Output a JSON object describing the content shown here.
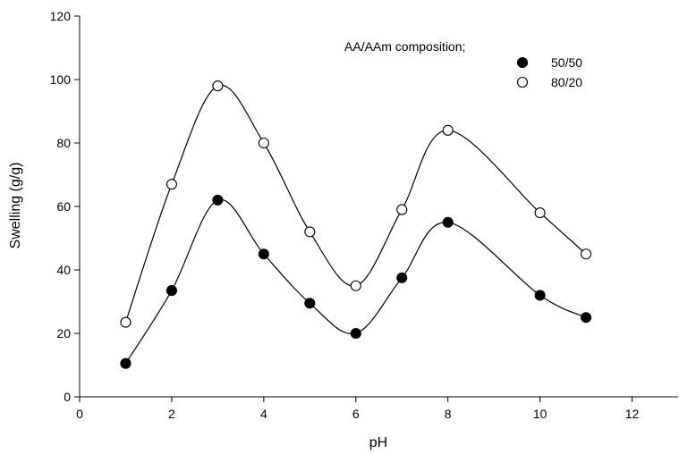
{
  "chart_data": {
    "type": "scatter",
    "title": "",
    "xlabel": "pH",
    "ylabel": "Swelling (g/g)",
    "xlim": [
      0,
      13
    ],
    "ylim": [
      0,
      120
    ],
    "xticks": [
      0,
      2,
      4,
      6,
      8,
      10,
      12
    ],
    "yticks": [
      0,
      20,
      40,
      60,
      80,
      100,
      120
    ],
    "grid": false,
    "legend": {
      "title": "AA/AAm composition;",
      "placement": "top-right"
    },
    "series": [
      {
        "name": "50/50",
        "marker": "filled-circle",
        "color": "#000000",
        "smooth_line": true,
        "x": [
          1,
          2,
          3,
          4,
          5,
          6,
          7,
          8,
          10,
          11
        ],
        "y": [
          10.5,
          33.5,
          62,
          45,
          29.5,
          20,
          37.5,
          55,
          32,
          25
        ]
      },
      {
        "name": "80/20",
        "marker": "open-circle",
        "color": "#000000",
        "smooth_line": true,
        "x": [
          1,
          2,
          3,
          4,
          5,
          6,
          7,
          8,
          10,
          11
        ],
        "y": [
          23.5,
          67,
          98,
          80,
          52,
          35,
          59,
          84,
          58,
          45
        ]
      }
    ]
  }
}
